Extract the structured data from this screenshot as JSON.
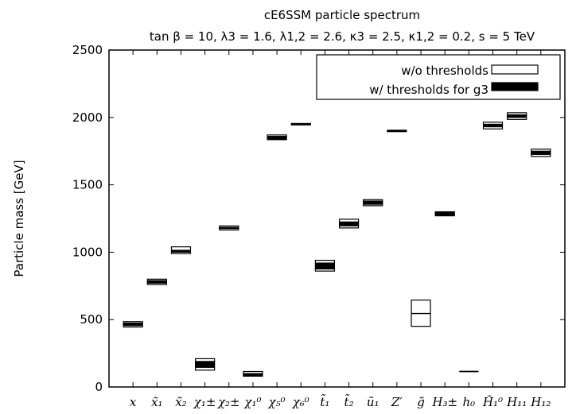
{
  "chart_data": {
    "type": "bar",
    "title": "cE6SSM particle spectrum",
    "subtitle": "tan β = 10, λ3 = 1.6, λ1,2 = 2.6, κ3 = 2.5, κ1,2 = 0.2, s = 5 TeV",
    "xlabel": "",
    "ylabel": "Particle mass [GeV]",
    "ylim": [
      0,
      2500
    ],
    "y_ticks": [
      "0",
      "500",
      "1000",
      "1500",
      "2000",
      "2500"
    ],
    "categories": [
      "x",
      "x̃₁",
      "x̃₂",
      "χ₁±",
      "χ₂±",
      "χ₁⁰",
      "χ₅⁰",
      "χ₆⁰",
      "t̃₁",
      "t̃₂",
      "ũ₁",
      "Z′",
      "g̃",
      "H₃±",
      "h₀",
      "H̃₁⁰",
      "H₁₁",
      "H₁₂"
    ],
    "legend_position": "top-right",
    "series": [
      {
        "name": "w/o thresholds",
        "style": "open box",
        "low": [
          445,
          760,
          990,
          125,
          1165,
          80,
          1835,
          1945,
          860,
          1180,
          1345,
          1895,
          450,
          1270,
          115,
          1915,
          1985,
          1710
        ],
        "mid": [
          465,
          780,
          1010,
          170,
          1180,
          95,
          1850,
          1950,
          900,
          1210,
          1370,
          1900,
          545,
          1285,
          115,
          1940,
          2010,
          1740
        ],
        "high": [
          485,
          800,
          1040,
          210,
          1195,
          115,
          1870,
          1955,
          940,
          1245,
          1390,
          1905,
          645,
          1300,
          115,
          1965,
          2035,
          1765
        ]
      },
      {
        "name": "w/ thresholds for g3",
        "style": "filled box",
        "low": [
          455,
          770,
          1000,
          145,
          1175,
          85,
          1840,
          1945,
          875,
          1195,
          1355,
          1895,
          545,
          1275,
          115,
          1930,
          2000,
          1725
        ],
        "high": [
          475,
          790,
          1015,
          190,
          1185,
          100,
          1860,
          1955,
          920,
          1225,
          1380,
          1905,
          545,
          1295,
          115,
          1950,
          2020,
          1750
        ]
      }
    ],
    "colors": {
      "open": "#000000",
      "filled": "#000000",
      "background": "#ffffff"
    }
  }
}
